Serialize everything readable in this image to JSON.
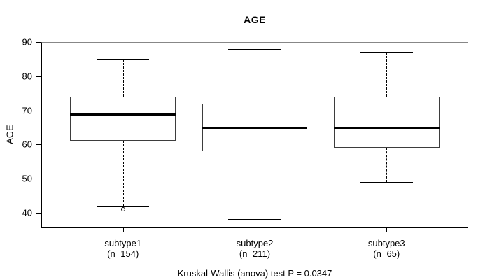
{
  "chart_data": {
    "type": "boxplot",
    "title": "AGE",
    "ylabel": "AGE",
    "xlabel": "",
    "footer": "Kruskal-Wallis (anova) test P = 0.0347",
    "ylim": [
      35.6,
      90.1
    ],
    "yticks": [
      40,
      50,
      60,
      70,
      80,
      90
    ],
    "grid": false,
    "legend": "none",
    "groups": [
      {
        "label": "subtype1",
        "sublabel": "(n=154)",
        "low": 42,
        "q1": 61,
        "median": 69,
        "q3": 74,
        "high": 85,
        "outliers": [
          41
        ]
      },
      {
        "label": "subtype2",
        "sublabel": "(n=211)",
        "low": 38,
        "q1": 58,
        "median": 65,
        "q3": 72,
        "high": 88,
        "outliers": []
      },
      {
        "label": "subtype3",
        "sublabel": "(n=65)",
        "low": 49,
        "q1": 59,
        "median": 65,
        "q3": 74,
        "high": 87,
        "outliers": []
      }
    ],
    "colors": {
      "line": "#000000",
      "median": "#000000",
      "box_fill": "#ffffff",
      "background": "#ffffff"
    }
  }
}
